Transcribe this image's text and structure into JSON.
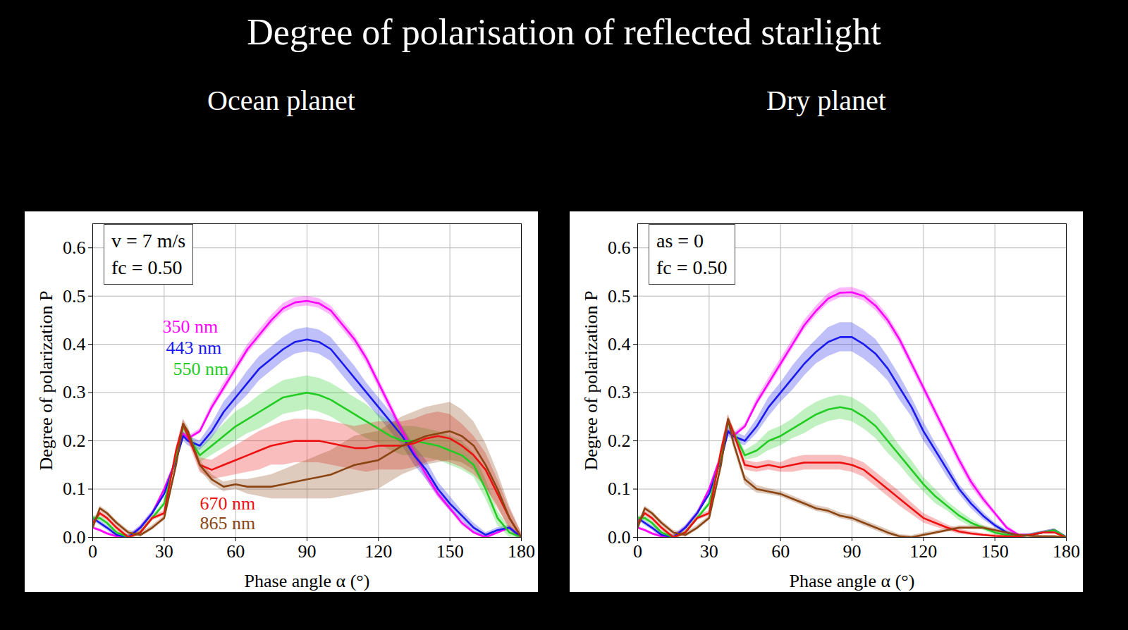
{
  "title": "Degree of polarisation of reflected starlight",
  "chart_data": [
    {
      "type": "line",
      "title": "Ocean planet",
      "annotation": [
        "v = 7 m/s",
        "fc = 0.50"
      ],
      "x_label": "Phase angle α (°)",
      "y_label": "Degree of polarization P",
      "x": [
        0,
        3,
        6,
        10,
        15,
        20,
        25,
        30,
        35,
        38,
        40,
        45,
        50,
        55,
        60,
        65,
        70,
        75,
        80,
        85,
        90,
        95,
        100,
        105,
        110,
        115,
        120,
        125,
        130,
        135,
        140,
        145,
        150,
        155,
        160,
        165,
        170,
        175,
        180
      ],
      "xlim": [
        0,
        180
      ],
      "xticks": [
        0,
        30,
        60,
        90,
        120,
        150,
        180
      ],
      "ylim": [
        0,
        0.65
      ],
      "yticks": [
        {
          "value": 0,
          "label": "0.0"
        },
        0.1,
        0.2,
        0.3,
        0.4,
        0.5,
        0.6
      ],
      "grid": true,
      "series": [
        {
          "name": "350 nm",
          "color": "#ff00ff",
          "values": [
            0.02,
            0.015,
            0.008,
            0.002,
            0.0,
            0.02,
            0.05,
            0.1,
            0.16,
            0.215,
            0.205,
            0.22,
            0.27,
            0.31,
            0.35,
            0.39,
            0.42,
            0.45,
            0.475,
            0.487,
            0.49,
            0.485,
            0.47,
            0.44,
            0.41,
            0.37,
            0.32,
            0.27,
            0.22,
            0.175,
            0.13,
            0.09,
            0.06,
            0.03,
            0.01,
            0.0,
            0.01,
            0.02,
            0.0
          ],
          "errors": [
            0.003,
            0.003,
            0.003,
            0.003,
            0.003,
            0.003,
            0.003,
            0.003,
            0.003,
            0.005,
            0.005,
            0.005,
            0.008,
            0.01,
            0.01,
            0.01,
            0.01,
            0.01,
            0.01,
            0.01,
            0.01,
            0.01,
            0.01,
            0.01,
            0.01,
            0.01,
            0.01,
            0.01,
            0.01,
            0.01,
            0.01,
            0.008,
            0.005,
            0.005,
            0.003,
            0.003,
            0.003,
            0.003,
            0.003
          ]
        },
        {
          "name": "443 nm",
          "color": "#1a1aee",
          "values": [
            0.04,
            0.03,
            0.02,
            0.005,
            0.0,
            0.02,
            0.05,
            0.09,
            0.16,
            0.21,
            0.2,
            0.19,
            0.22,
            0.26,
            0.29,
            0.32,
            0.35,
            0.37,
            0.39,
            0.405,
            0.41,
            0.405,
            0.39,
            0.36,
            0.33,
            0.3,
            0.27,
            0.24,
            0.21,
            0.17,
            0.14,
            0.1,
            0.07,
            0.045,
            0.02,
            0.005,
            0.015,
            0.02,
            0.0
          ],
          "errors": [
            0.005,
            0.005,
            0.005,
            0.005,
            0.005,
            0.005,
            0.005,
            0.005,
            0.005,
            0.01,
            0.01,
            0.01,
            0.015,
            0.02,
            0.02,
            0.025,
            0.025,
            0.025,
            0.025,
            0.025,
            0.025,
            0.025,
            0.025,
            0.025,
            0.025,
            0.02,
            0.02,
            0.02,
            0.02,
            0.02,
            0.02,
            0.015,
            0.015,
            0.01,
            0.01,
            0.005,
            0.005,
            0.005,
            0.005
          ]
        },
        {
          "name": "550 nm",
          "color": "#22cc22",
          "values": [
            0.04,
            0.04,
            0.03,
            0.01,
            0.0,
            0.01,
            0.04,
            0.07,
            0.17,
            0.23,
            0.21,
            0.17,
            0.19,
            0.21,
            0.23,
            0.245,
            0.26,
            0.275,
            0.29,
            0.295,
            0.3,
            0.295,
            0.285,
            0.27,
            0.255,
            0.24,
            0.225,
            0.21,
            0.2,
            0.2,
            0.195,
            0.19,
            0.18,
            0.17,
            0.15,
            0.1,
            0.04,
            0.01,
            0.0
          ],
          "errors": [
            0.005,
            0.005,
            0.005,
            0.005,
            0.005,
            0.005,
            0.005,
            0.005,
            0.005,
            0.01,
            0.01,
            0.015,
            0.02,
            0.025,
            0.03,
            0.03,
            0.035,
            0.035,
            0.035,
            0.035,
            0.035,
            0.035,
            0.035,
            0.035,
            0.035,
            0.035,
            0.03,
            0.03,
            0.03,
            0.03,
            0.03,
            0.03,
            0.03,
            0.03,
            0.025,
            0.02,
            0.015,
            0.01,
            0.005
          ]
        },
        {
          "name": "670 nm",
          "color": "#ee1111",
          "values": [
            0.03,
            0.05,
            0.04,
            0.02,
            0.0,
            0.01,
            0.04,
            0.05,
            0.18,
            0.235,
            0.21,
            0.15,
            0.14,
            0.15,
            0.16,
            0.17,
            0.18,
            0.19,
            0.195,
            0.2,
            0.2,
            0.2,
            0.195,
            0.19,
            0.185,
            0.185,
            0.19,
            0.19,
            0.19,
            0.195,
            0.205,
            0.21,
            0.205,
            0.19,
            0.17,
            0.14,
            0.09,
            0.04,
            0.0
          ],
          "errors": [
            0.005,
            0.005,
            0.005,
            0.005,
            0.005,
            0.005,
            0.005,
            0.005,
            0.005,
            0.01,
            0.01,
            0.015,
            0.02,
            0.025,
            0.03,
            0.035,
            0.04,
            0.04,
            0.045,
            0.045,
            0.045,
            0.045,
            0.045,
            0.045,
            0.045,
            0.05,
            0.05,
            0.05,
            0.05,
            0.05,
            0.05,
            0.05,
            0.05,
            0.045,
            0.04,
            0.035,
            0.03,
            0.02,
            0.01
          ]
        },
        {
          "name": "865 nm",
          "color": "#8b4513",
          "values": [
            0.02,
            0.06,
            0.05,
            0.03,
            0.01,
            0.005,
            0.02,
            0.04,
            0.15,
            0.235,
            0.22,
            0.15,
            0.12,
            0.105,
            0.11,
            0.105,
            0.105,
            0.105,
            0.11,
            0.115,
            0.12,
            0.125,
            0.13,
            0.14,
            0.15,
            0.155,
            0.16,
            0.175,
            0.19,
            0.2,
            0.21,
            0.215,
            0.22,
            0.21,
            0.19,
            0.15,
            0.1,
            0.04,
            0.0
          ],
          "errors": [
            0.005,
            0.005,
            0.005,
            0.005,
            0.005,
            0.005,
            0.005,
            0.005,
            0.005,
            0.01,
            0.01,
            0.01,
            0.01,
            0.01,
            0.01,
            0.015,
            0.02,
            0.025,
            0.03,
            0.035,
            0.04,
            0.045,
            0.05,
            0.055,
            0.06,
            0.06,
            0.06,
            0.06,
            0.06,
            0.06,
            0.06,
            0.06,
            0.06,
            0.055,
            0.05,
            0.045,
            0.035,
            0.025,
            0.01
          ]
        }
      ]
    },
    {
      "type": "line",
      "title": "Dry planet",
      "annotation": [
        "as = 0",
        "fc = 0.50"
      ],
      "x_label": "Phase angle α (°)",
      "y_label": "Degree of polarization P",
      "x": [
        0,
        3,
        6,
        10,
        15,
        20,
        25,
        30,
        35,
        38,
        40,
        45,
        50,
        55,
        60,
        65,
        70,
        75,
        80,
        85,
        90,
        95,
        100,
        105,
        110,
        115,
        120,
        125,
        130,
        135,
        140,
        145,
        150,
        155,
        160,
        165,
        170,
        175,
        180
      ],
      "xlim": [
        0,
        180
      ],
      "xticks": [
        0,
        30,
        60,
        90,
        120,
        150,
        180
      ],
      "ylim": [
        0,
        0.65
      ],
      "yticks": [
        {
          "value": 0,
          "label": "0.0"
        },
        0.1,
        0.2,
        0.3,
        0.4,
        0.5,
        0.6
      ],
      "grid": true,
      "series": [
        {
          "color": "#ff00ff",
          "values": [
            0.02,
            0.015,
            0.008,
            0.002,
            0.0,
            0.02,
            0.05,
            0.1,
            0.17,
            0.22,
            0.21,
            0.23,
            0.28,
            0.32,
            0.36,
            0.4,
            0.44,
            0.47,
            0.495,
            0.507,
            0.508,
            0.5,
            0.48,
            0.45,
            0.41,
            0.36,
            0.31,
            0.26,
            0.21,
            0.16,
            0.115,
            0.08,
            0.05,
            0.02,
            0.005,
            0.005,
            0.01,
            0.015,
            0.0
          ],
          "errors": [
            0.003,
            0.003,
            0.003,
            0.003,
            0.003,
            0.003,
            0.003,
            0.003,
            0.003,
            0.005,
            0.005,
            0.005,
            0.008,
            0.01,
            0.01,
            0.01,
            0.01,
            0.01,
            0.01,
            0.01,
            0.01,
            0.01,
            0.01,
            0.01,
            0.01,
            0.01,
            0.01,
            0.01,
            0.01,
            0.01,
            0.01,
            0.008,
            0.005,
            0.005,
            0.003,
            0.003,
            0.003,
            0.003,
            0.003
          ]
        },
        {
          "color": "#1a1aee",
          "values": [
            0.04,
            0.03,
            0.02,
            0.005,
            0.0,
            0.02,
            0.05,
            0.09,
            0.16,
            0.22,
            0.21,
            0.2,
            0.23,
            0.27,
            0.3,
            0.33,
            0.36,
            0.385,
            0.405,
            0.415,
            0.415,
            0.4,
            0.38,
            0.35,
            0.31,
            0.27,
            0.22,
            0.18,
            0.14,
            0.1,
            0.07,
            0.045,
            0.025,
            0.01,
            0.002,
            0.005,
            0.01,
            0.015,
            0.0
          ],
          "errors": [
            0.005,
            0.005,
            0.005,
            0.005,
            0.005,
            0.005,
            0.005,
            0.005,
            0.005,
            0.01,
            0.01,
            0.01,
            0.015,
            0.02,
            0.02,
            0.025,
            0.025,
            0.025,
            0.03,
            0.03,
            0.03,
            0.03,
            0.03,
            0.025,
            0.025,
            0.02,
            0.02,
            0.015,
            0.015,
            0.01,
            0.01,
            0.008,
            0.005,
            0.005,
            0.003,
            0.003,
            0.003,
            0.003,
            0.003
          ]
        },
        {
          "color": "#22cc22",
          "values": [
            0.04,
            0.04,
            0.03,
            0.01,
            0.0,
            0.01,
            0.04,
            0.07,
            0.17,
            0.24,
            0.22,
            0.17,
            0.18,
            0.2,
            0.21,
            0.225,
            0.24,
            0.255,
            0.265,
            0.27,
            0.265,
            0.25,
            0.23,
            0.2,
            0.17,
            0.14,
            0.11,
            0.085,
            0.065,
            0.045,
            0.03,
            0.02,
            0.01,
            0.005,
            0.002,
            0.005,
            0.01,
            0.015,
            0.0
          ],
          "errors": [
            0.005,
            0.005,
            0.005,
            0.005,
            0.005,
            0.005,
            0.005,
            0.005,
            0.005,
            0.01,
            0.01,
            0.01,
            0.015,
            0.02,
            0.02,
            0.02,
            0.025,
            0.025,
            0.025,
            0.025,
            0.025,
            0.025,
            0.025,
            0.025,
            0.02,
            0.02,
            0.015,
            0.015,
            0.01,
            0.01,
            0.008,
            0.005,
            0.005,
            0.003,
            0.003,
            0.003,
            0.003,
            0.003,
            0.003
          ]
        },
        {
          "color": "#ee1111",
          "values": [
            0.03,
            0.05,
            0.04,
            0.02,
            0.0,
            0.01,
            0.04,
            0.05,
            0.18,
            0.245,
            0.22,
            0.15,
            0.145,
            0.15,
            0.145,
            0.15,
            0.155,
            0.155,
            0.155,
            0.155,
            0.15,
            0.14,
            0.12,
            0.1,
            0.08,
            0.06,
            0.04,
            0.03,
            0.02,
            0.012,
            0.008,
            0.005,
            0.003,
            0.002,
            0.002,
            0.005,
            0.01,
            0.01,
            0.0
          ],
          "errors": [
            0.005,
            0.005,
            0.005,
            0.005,
            0.005,
            0.005,
            0.005,
            0.005,
            0.005,
            0.01,
            0.01,
            0.01,
            0.01,
            0.01,
            0.01,
            0.015,
            0.015,
            0.015,
            0.015,
            0.015,
            0.015,
            0.015,
            0.015,
            0.015,
            0.015,
            0.012,
            0.01,
            0.008,
            0.006,
            0.005,
            0.004,
            0.003,
            0.003,
            0.002,
            0.002,
            0.002,
            0.002,
            0.002,
            0.002
          ]
        },
        {
          "color": "#8b4513",
          "values": [
            0.02,
            0.06,
            0.05,
            0.03,
            0.01,
            0.005,
            0.02,
            0.04,
            0.15,
            0.245,
            0.2,
            0.12,
            0.1,
            0.095,
            0.09,
            0.08,
            0.07,
            0.06,
            0.055,
            0.045,
            0.04,
            0.03,
            0.02,
            0.01,
            0.002,
            0.0,
            0.005,
            0.01,
            0.015,
            0.02,
            0.02,
            0.02,
            0.015,
            0.01,
            0.005,
            0.003,
            0.002,
            0.002,
            0.0
          ],
          "errors": [
            0.005,
            0.005,
            0.005,
            0.005,
            0.005,
            0.005,
            0.005,
            0.005,
            0.005,
            0.01,
            0.01,
            0.01,
            0.008,
            0.006,
            0.006,
            0.006,
            0.006,
            0.006,
            0.006,
            0.006,
            0.006,
            0.006,
            0.006,
            0.006,
            0.004,
            0.004,
            0.004,
            0.004,
            0.004,
            0.004,
            0.004,
            0.004,
            0.004,
            0.003,
            0.003,
            0.002,
            0.002,
            0.002,
            0.002
          ]
        }
      ]
    }
  ]
}
